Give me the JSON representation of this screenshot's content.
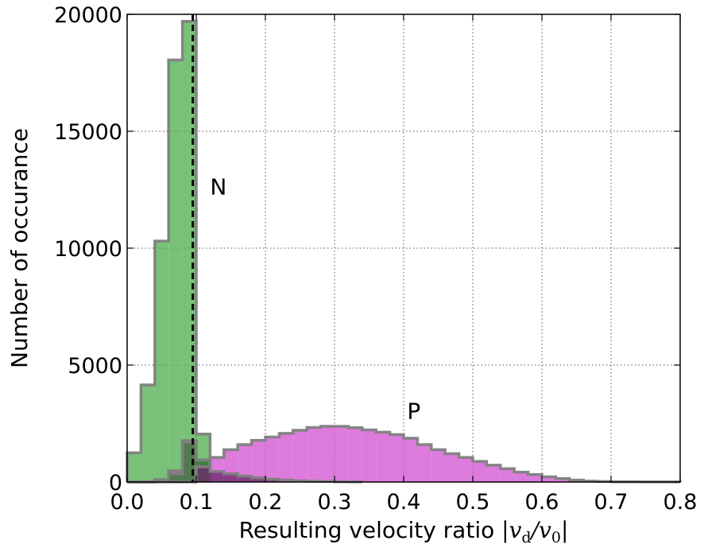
{
  "chart_data": {
    "type": "bar",
    "xlabel_text": "Resulting velocity ratio ",
    "xlabel_math": {
      "bar_left": "|",
      "v1": "v",
      "sub1": "d",
      "slash": "/",
      "v2": "v",
      "sub2": "0",
      "bar_right": "|"
    },
    "ylabel": "Number of occurance",
    "xlim": [
      0.0,
      0.8
    ],
    "ylim": [
      0,
      20000
    ],
    "grid": true,
    "bin_width": 0.02,
    "xticks": [
      "0.0",
      "0.1",
      "0.2",
      "0.3",
      "0.4",
      "0.5",
      "0.6",
      "0.7",
      "0.8"
    ],
    "yticks": [
      "0",
      "5000",
      "10000",
      "15000",
      "20000"
    ],
    "vline": {
      "x": 0.095,
      "style": "dashed"
    },
    "annotations": [
      {
        "text": "N",
        "x": 0.12,
        "y": 12300
      },
      {
        "text": "P",
        "x": 0.405,
        "y": 2700
      }
    ],
    "series": [
      {
        "id": "green",
        "fill": "#4cac4c",
        "values": [
          1250,
          4150,
          10300,
          18050,
          19700,
          2050
        ]
      },
      {
        "id": "magenta",
        "fill": "#d24fd2",
        "values": [
          0,
          0,
          100,
          480,
          1770,
          800,
          1050,
          1380,
          1600,
          1780,
          1920,
          2080,
          2210,
          2330,
          2380,
          2380,
          2320,
          2230,
          2130,
          2030,
          1870,
          1600,
          1380,
          1210,
          1050,
          880,
          720,
          570,
          420,
          320,
          220,
          150,
          80,
          40,
          20,
          10,
          10,
          5,
          5,
          5
        ]
      },
      {
        "id": "dark-green",
        "fill": "#2f7f2f",
        "values": [
          0,
          0,
          50,
          350,
          1700,
          950
        ]
      },
      {
        "id": "purple",
        "fill": "#6a2a6a",
        "values": [
          0,
          0,
          0,
          0,
          0,
          650,
          450,
          350,
          250,
          180,
          120,
          80,
          50,
          30,
          20,
          10,
          5
        ]
      }
    ]
  }
}
